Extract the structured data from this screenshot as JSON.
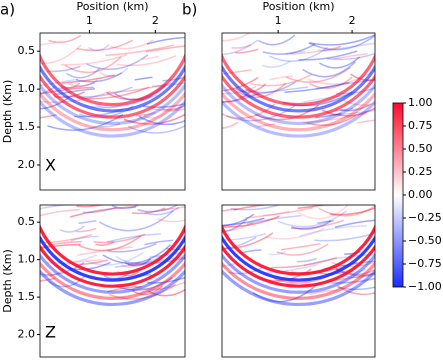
{
  "chart_data": [
    {
      "type": "heatmap",
      "panel_label": "a)",
      "xlabel": "Position (km)",
      "ylabel": "Depth (Km)",
      "annotation": "X",
      "xlim": [
        0.25,
        2.45
      ],
      "ylim": [
        0.26,
        2.33
      ],
      "y_inverted": true,
      "xticks": [
        1,
        2
      ],
      "yticks": [
        0.5,
        {
          "value": 1,
          "label": "1.0"
        },
        1.5,
        {
          "value": 2,
          "label": "2.0"
        }
      ]
    },
    {
      "type": "heatmap",
      "panel_label": "b)",
      "xlabel": "Position (km)",
      "xlim": [
        0.24,
        2.31
      ],
      "ylim": [
        0.26,
        2.33
      ],
      "y_inverted": true,
      "xticks": [
        1,
        2
      ]
    },
    {
      "type": "heatmap",
      "ylabel": "Depth (Km)",
      "annotation": "Z",
      "xlim": [
        0.25,
        2.45
      ],
      "ylim": [
        0.27,
        2.3
      ],
      "y_inverted": true,
      "yticks": [
        0.5,
        {
          "value": 1,
          "label": "1.0"
        },
        1.5,
        {
          "value": 2,
          "label": "2.0"
        }
      ]
    },
    {
      "type": "heatmap",
      "xlim": [
        0.24,
        2.31
      ],
      "ylim": [
        0.27,
        2.3
      ],
      "y_inverted": true
    }
  ],
  "colorbar": {
    "lim": [
      -1,
      1
    ],
    "colors": [
      "#1a2cff",
      "#ffffff",
      "#ff0a2a"
    ],
    "ticks": [
      {
        "value": 1,
        "label": "1.00"
      },
      {
        "value": 0.75,
        "label": "0.75"
      },
      {
        "value": 0.5,
        "label": "0.50"
      },
      {
        "value": 0.25,
        "label": "0.25"
      },
      {
        "value": 0,
        "label": "0.00"
      },
      {
        "value": -0.25,
        "label": "−0.25"
      },
      {
        "value": -0.5,
        "label": "−0.50"
      },
      {
        "value": -0.75,
        "label": "−0.75"
      },
      {
        "value": -1,
        "label": "−1.00"
      }
    ]
  }
}
